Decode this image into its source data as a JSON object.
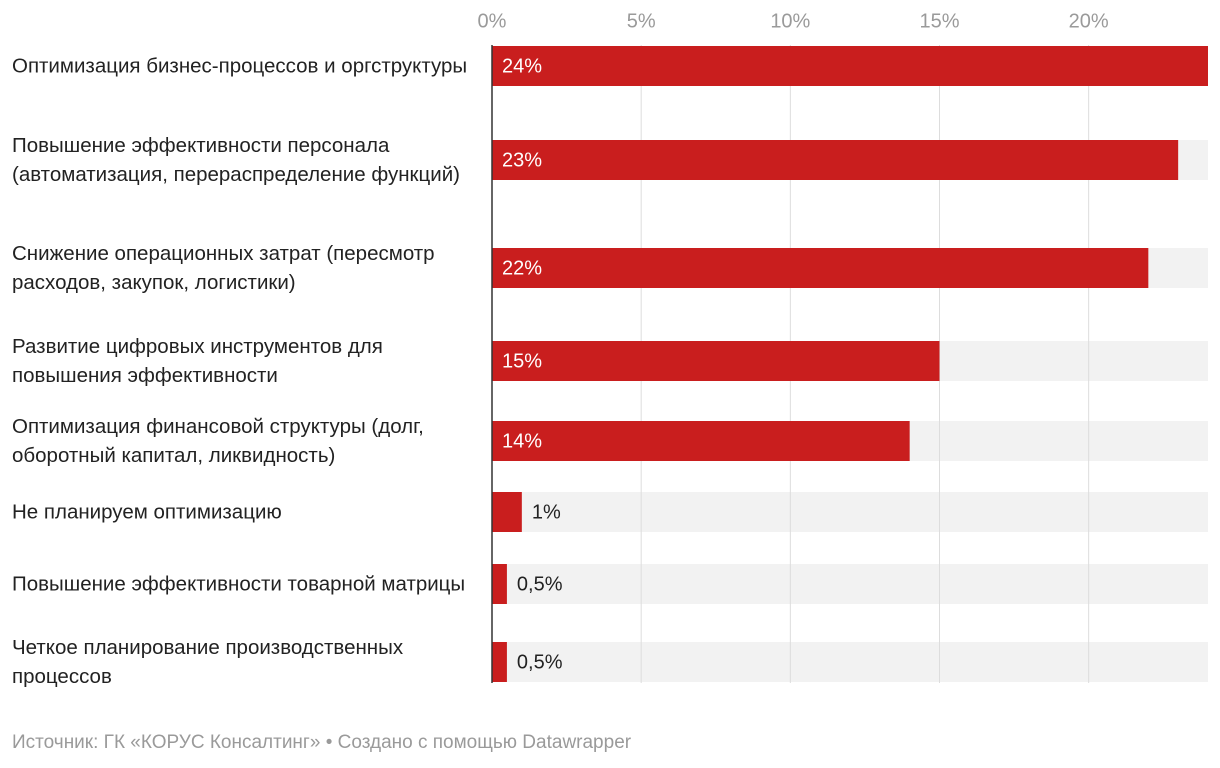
{
  "chart_data": {
    "type": "bar",
    "orientation": "horizontal",
    "categories": [
      "Оптимизация бизнес-процессов и оргструктуры",
      "Повышение эффективности персонала (автоматизация, перераспределение функций)",
      "Снижение операционных затрат (пересмотр расходов, закупок, логистики)",
      "Развитие цифровых инструментов для повышения эффективности",
      "Оптимизация финансовой структуры (долг, оборотный капитал, ликвидность)",
      "Не планируем оптимизацию",
      "Повышение эффективности товарной матрицы",
      "Четкое планирование производственных процессов"
    ],
    "values": [
      24,
      23,
      22,
      15,
      14,
      1,
      0.5,
      0.5
    ],
    "value_labels": [
      "24%",
      "23%",
      "22%",
      "15%",
      "14%",
      "1%",
      "0,5%",
      "0,5%"
    ],
    "color": "#c91e1e",
    "xlim": [
      0,
      24
    ],
    "xticks": [
      {
        "value": 0,
        "label": "0%"
      },
      {
        "value": 5,
        "label": "5%"
      },
      {
        "value": 10,
        "label": "10%"
      },
      {
        "value": 15,
        "label": "15%"
      },
      {
        "value": 20,
        "label": "20%"
      }
    ],
    "grid": true,
    "source": "Источник: ГК «КОРУС Консалтинг» • Создано с помощью Datawrapper"
  }
}
